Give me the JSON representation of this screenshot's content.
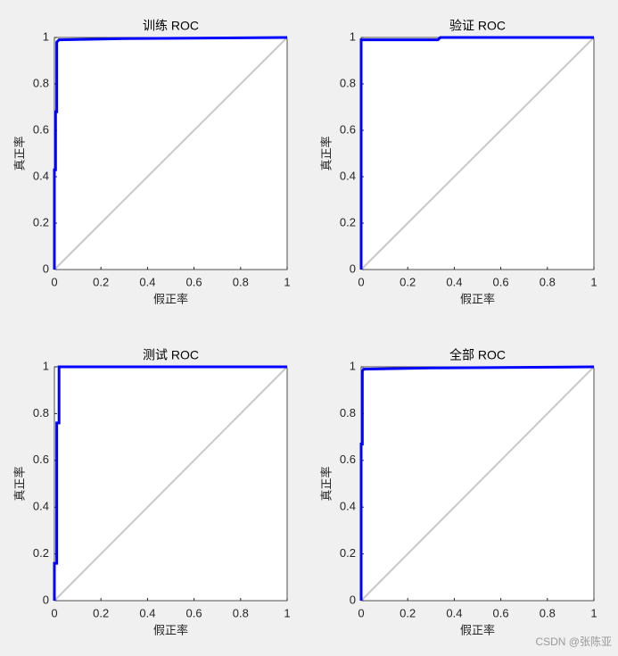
{
  "chart_data": [
    {
      "type": "line",
      "title": "训练 ROC",
      "xlabel": "假正率",
      "ylabel": "真正率",
      "xlim": [
        0,
        1
      ],
      "ylim": [
        0,
        1
      ],
      "xticks": [
        0,
        0.2,
        0.4,
        0.6,
        0.8,
        1
      ],
      "yticks": [
        0,
        0.2,
        0.4,
        0.6,
        0.8,
        1
      ],
      "series": [
        {
          "color": "#0000ff",
          "x": [
            0,
            0,
            0.005,
            0.005,
            0.01,
            0.01,
            0.02,
            0.3,
            1
          ],
          "values": [
            0,
            0.43,
            0.43,
            0.68,
            0.68,
            0.98,
            0.99,
            0.995,
            1
          ]
        },
        {
          "color": "#c8c8c8",
          "x": [
            0,
            1
          ],
          "values": [
            0,
            1
          ]
        }
      ]
    },
    {
      "type": "line",
      "title": "验证 ROC",
      "xlabel": "假正率",
      "ylabel": "真正率",
      "xlim": [
        0,
        1
      ],
      "ylim": [
        0,
        1
      ],
      "xticks": [
        0,
        0.2,
        0.4,
        0.6,
        0.8,
        1
      ],
      "yticks": [
        0,
        0.2,
        0.4,
        0.6,
        0.8,
        1
      ],
      "series": [
        {
          "color": "#0000ff",
          "x": [
            0,
            0,
            0.33,
            0.34,
            1
          ],
          "values": [
            0,
            0.99,
            0.99,
            1,
            1
          ]
        },
        {
          "color": "#c8c8c8",
          "x": [
            0,
            1
          ],
          "values": [
            0,
            1
          ]
        }
      ]
    },
    {
      "type": "line",
      "title": "测试 ROC",
      "xlabel": "假正率",
      "ylabel": "真正率",
      "xlim": [
        0,
        1
      ],
      "ylim": [
        0,
        1
      ],
      "xticks": [
        0,
        0.2,
        0.4,
        0.6,
        0.8,
        1
      ],
      "yticks": [
        0,
        0.2,
        0.4,
        0.6,
        0.8,
        1
      ],
      "series": [
        {
          "color": "#0000ff",
          "x": [
            0,
            0,
            0.01,
            0.01,
            0.02,
            0.02,
            1
          ],
          "values": [
            0,
            0.16,
            0.16,
            0.76,
            0.76,
            1,
            1
          ]
        },
        {
          "color": "#c8c8c8",
          "x": [
            0,
            1
          ],
          "values": [
            0,
            1
          ]
        }
      ]
    },
    {
      "type": "line",
      "title": "全部 ROC",
      "xlabel": "假正率",
      "ylabel": "真正率",
      "xlim": [
        0,
        1
      ],
      "ylim": [
        0,
        1
      ],
      "xticks": [
        0,
        0.2,
        0.4,
        0.6,
        0.8,
        1
      ],
      "yticks": [
        0,
        0.2,
        0.4,
        0.6,
        0.8,
        1
      ],
      "series": [
        {
          "color": "#0000ff",
          "x": [
            0,
            0,
            0.005,
            0.005,
            0.01,
            0.3,
            1
          ],
          "values": [
            0,
            0.67,
            0.67,
            0.98,
            0.99,
            0.995,
            1
          ]
        },
        {
          "color": "#c8c8c8",
          "x": [
            0,
            1
          ],
          "values": [
            0,
            1
          ]
        }
      ]
    }
  ],
  "watermark": "CSDN @张陈亚"
}
